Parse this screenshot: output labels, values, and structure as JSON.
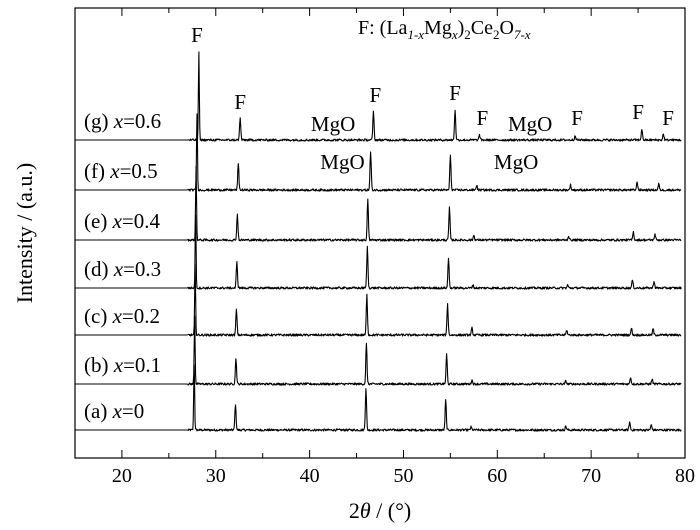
{
  "chart_data": {
    "type": "line",
    "xlabel_pre": "2",
    "xlabel_theta": "θ",
    "xlabel_post": " / (°)",
    "ylabel": "Intensity / (a.u.)",
    "xlim": [
      15,
      80
    ],
    "x_ticks": [
      20,
      30,
      40,
      50,
      60,
      70,
      80
    ],
    "grid": false,
    "legend": {
      "prefix": "F: (La",
      "sub1": "1-x",
      "mid1": "Mg",
      "sub2": "x",
      "mid2": ")",
      "sub3": "2",
      "mid3": "Ce",
      "sub4": "2",
      "mid4": "O",
      "sub5": "7-x"
    },
    "series": [
      {
        "label_pre": "(a) ",
        "label_var": "x",
        "label_val": "=0",
        "peaks": [
          [
            27.7,
            65
          ],
          [
            32.1,
            26
          ],
          [
            46.0,
            42
          ],
          [
            54.5,
            30
          ],
          [
            57.2,
            3
          ],
          [
            67.3,
            4
          ],
          [
            74.1,
            8
          ],
          [
            76.4,
            5
          ]
        ]
      },
      {
        "label_pre": "(b) ",
        "label_var": "x",
        "label_val": "=0.1",
        "peaks": [
          [
            27.75,
            68
          ],
          [
            32.15,
            26
          ],
          [
            46.05,
            40
          ],
          [
            54.6,
            30
          ],
          [
            57.3,
            4
          ],
          [
            67.3,
            3
          ],
          [
            74.2,
            7
          ],
          [
            76.5,
            5
          ]
        ]
      },
      {
        "label_pre": "(c) ",
        "label_var": "x",
        "label_val": "=0.2",
        "peaks": [
          [
            27.8,
            70
          ],
          [
            32.2,
            25
          ],
          [
            46.1,
            40
          ],
          [
            54.7,
            31
          ],
          [
            57.3,
            7
          ],
          [
            67.4,
            5
          ],
          [
            74.3,
            7
          ],
          [
            76.6,
            6
          ]
        ]
      },
      {
        "label_pre": "(d) ",
        "label_var": "x",
        "label_val": "=0.3",
        "peaks": [
          [
            27.85,
            72
          ],
          [
            32.25,
            26
          ],
          [
            46.15,
            41
          ],
          [
            54.8,
            30
          ],
          [
            57.4,
            3
          ],
          [
            67.5,
            3
          ],
          [
            74.4,
            8
          ],
          [
            76.7,
            7
          ]
        ]
      },
      {
        "label_pre": "(e) ",
        "label_var": "x",
        "label_val": "=0.4",
        "peaks": [
          [
            27.9,
            73
          ],
          [
            32.3,
            26
          ],
          [
            46.2,
            40
          ],
          [
            54.9,
            32
          ],
          [
            57.5,
            5
          ],
          [
            67.6,
            4
          ],
          [
            74.5,
            8
          ],
          [
            76.8,
            6
          ]
        ]
      },
      {
        "label_pre": "(f) ",
        "label_var": "x",
        "label_val": "=0.5",
        "peaks": [
          [
            28.0,
            75
          ],
          [
            32.4,
            26
          ],
          [
            46.5,
            38
          ],
          [
            55.0,
            34
          ],
          [
            57.8,
            5
          ],
          [
            67.8,
            5
          ],
          [
            74.9,
            8
          ],
          [
            77.2,
            6
          ]
        ]
      },
      {
        "label_pre": "(g) ",
        "label_var": "x",
        "label_val": "=0.6",
        "peaks": [
          [
            28.2,
            87
          ],
          [
            32.6,
            22
          ],
          [
            46.8,
            28
          ],
          [
            55.5,
            30
          ],
          [
            58.1,
            5
          ],
          [
            68.3,
            5
          ],
          [
            75.4,
            11
          ],
          [
            77.7,
            6
          ]
        ]
      }
    ],
    "annotations": [
      {
        "text": "F",
        "x": 28.0,
        "series": 6,
        "above": 92
      },
      {
        "text": "F",
        "x": 32.6,
        "series": 6,
        "above": 25
      },
      {
        "text": "MgO",
        "x": 42.5,
        "series": 6,
        "above": 3
      },
      {
        "text": "F",
        "x": 47.0,
        "series": 6,
        "above": 32
      },
      {
        "text": "F",
        "x": 55.5,
        "series": 6,
        "above": 34
      },
      {
        "text": "F",
        "x": 58.4,
        "series": 6,
        "above": 9
      },
      {
        "text": "MgO",
        "x": 63.5,
        "series": 6,
        "above": 3
      },
      {
        "text": "F",
        "x": 68.5,
        "series": 6,
        "above": 9
      },
      {
        "text": "F",
        "x": 75.0,
        "series": 6,
        "above": 15
      },
      {
        "text": "F",
        "x": 78.2,
        "series": 6,
        "above": 9
      },
      {
        "text": "MgO",
        "x": 43.5,
        "series": 5,
        "above": 15
      },
      {
        "text": "MgO",
        "x": 62.0,
        "series": 5,
        "above": 15
      }
    ]
  }
}
